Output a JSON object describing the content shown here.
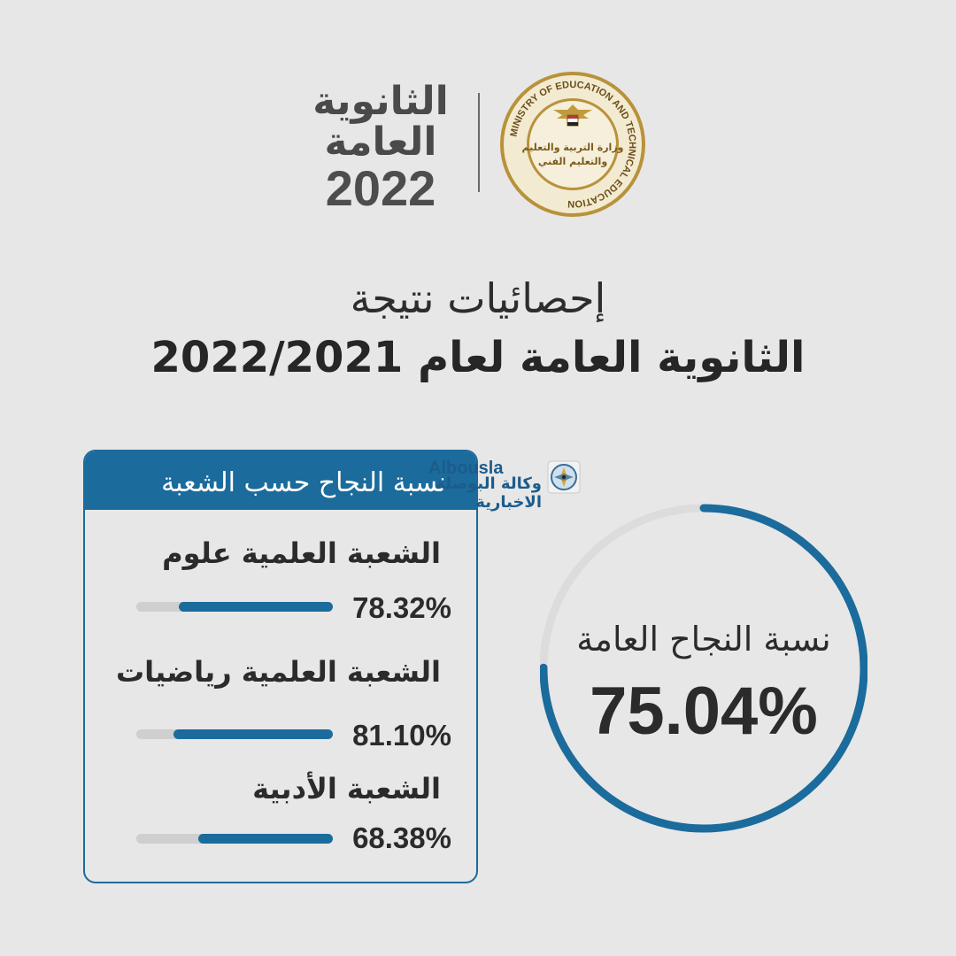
{
  "brand": {
    "word_1": "الثانوية",
    "word_2": "العامة",
    "year": "2022",
    "seal_text_arabic_1": "وزارة التربية والتعليم",
    "seal_text_arabic_2": "والتعليم الفني",
    "seal_ring_text": "MINISTRY OF EDUCATION AND TECHNICAL EDUCATION"
  },
  "title": {
    "line_1": "إحصائيات نتيجة",
    "line_2": "الثانوية العامة لعام 2022/2021"
  },
  "watermark": {
    "latin": "Albousla",
    "arabic": "وكالة البوصلة الاخبارية"
  },
  "panel": {
    "header": "نسبة النجاح حسب الشعبة",
    "tracks": [
      {
        "name": "الشعبة العلمية علوم",
        "percent_text": "78.32%",
        "fraction": 0.7832
      },
      {
        "name": "الشعبة العلمية رياضيات",
        "percent_text": "81.10%",
        "fraction": 0.811
      },
      {
        "name": "الشعبة الأدبية",
        "percent_text": "68.38%",
        "fraction": 0.6838
      }
    ]
  },
  "overall": {
    "label": "نسبة النجاح العامة",
    "percent_text": "75.04%",
    "fraction": 0.7504
  },
  "colors": {
    "accent": "#1b6b9c",
    "track": "#cfcfcf",
    "ring_track": "#dcdcdc",
    "background": "#e7e7e7",
    "seal_gold": "#b8923a"
  }
}
